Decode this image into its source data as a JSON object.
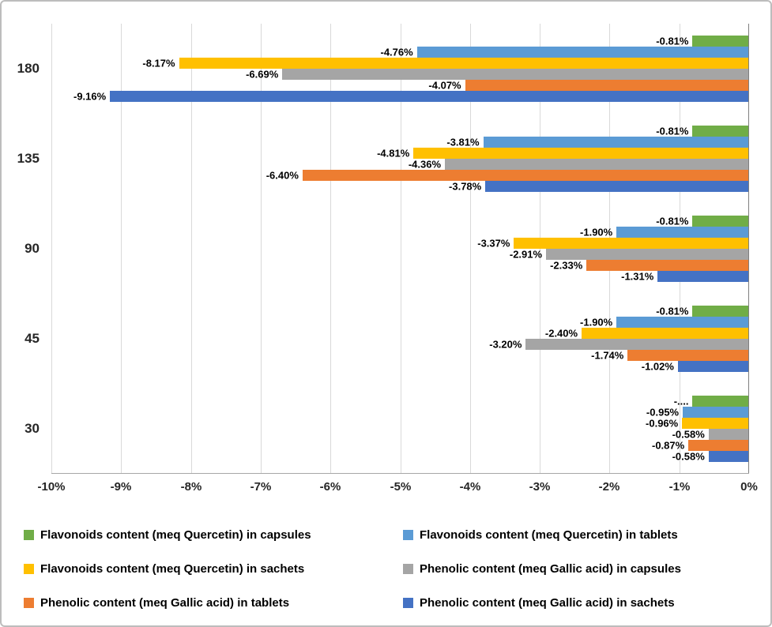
{
  "chart_data": {
    "type": "bar",
    "orientation": "horizontal",
    "title": "",
    "xlabel": "",
    "ylabel": "",
    "xlim": [
      -10,
      0
    ],
    "grid": true,
    "legend_position": "bottom",
    "categories": [
      "180",
      "135",
      "90",
      "45",
      "30"
    ],
    "x_ticks": [
      "-10%",
      "-9%",
      "-8%",
      "-7%",
      "-6%",
      "-5%",
      "-4%",
      "-3%",
      "-2%",
      "-1%",
      "0%"
    ],
    "series": [
      {
        "name": "Flavonoids content (meq Quercetin) in capsules",
        "color": "#70AD47",
        "values": [
          -0.81,
          -0.81,
          -0.81,
          -0.81,
          -0.81
        ],
        "labels": [
          "-0.81%",
          "-0.81%",
          "-0.81%",
          "-0.81%",
          "-...."
        ]
      },
      {
        "name": "Flavonoids content (meq Quercetin) in tablets",
        "color": "#5B9BD5",
        "values": [
          -4.76,
          -3.81,
          -1.9,
          -1.9,
          -0.95
        ],
        "labels": [
          "-4.76%",
          "-3.81%",
          "-1.90%",
          "-1.90%",
          "-0.95%"
        ]
      },
      {
        "name": "Flavonoids content (meq Quercetin) in sachets",
        "color": "#FFC000",
        "values": [
          -8.17,
          -4.81,
          -3.37,
          -2.4,
          -0.96
        ],
        "labels": [
          "-8.17%",
          "-4.81%",
          "-3.37%",
          "-2.40%",
          "-0.96%"
        ]
      },
      {
        "name": "Phenolic content (meq Gallic acid) in capsules",
        "color": "#A5A5A5",
        "values": [
          -6.69,
          -4.36,
          -2.91,
          -3.2,
          -0.58
        ],
        "labels": [
          "-6.69%",
          "-4.36%",
          "-2.91%",
          "-3.20%",
          "-0.58%"
        ]
      },
      {
        "name": "Phenolic content (meq Gallic acid) in tablets",
        "color": "#ED7D31",
        "values": [
          -4.07,
          -6.4,
          -2.33,
          -1.74,
          -0.87
        ],
        "labels": [
          "-4.07%",
          "-6.40%",
          "-2.33%",
          "-1.74%",
          "-0.87%"
        ]
      },
      {
        "name": "Phenolic content (meq Gallic acid) in sachets",
        "color": "#4472C4",
        "values": [
          -9.16,
          -3.78,
          -1.31,
          -1.02,
          -0.58
        ],
        "labels": [
          "-9.16%",
          "-3.78%",
          "-1.31%",
          "-1.02%",
          "-0.58%"
        ]
      }
    ]
  }
}
